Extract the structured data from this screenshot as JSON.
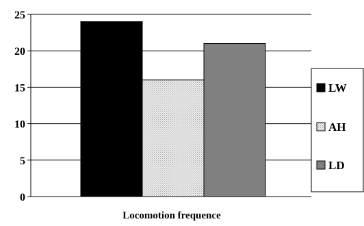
{
  "chart_data": {
    "type": "bar",
    "title": "",
    "xlabel": "Locomotion frequence",
    "ylabel": "",
    "ylim": [
      0,
      25
    ],
    "yticks": [
      "0",
      "5",
      "10",
      "15",
      "20",
      "25"
    ],
    "grid": true,
    "legend_position": "right",
    "categories": [
      ""
    ],
    "series": [
      {
        "name": "LW",
        "values": [
          24
        ],
        "color": "#000000",
        "pattern": "solid"
      },
      {
        "name": "AH",
        "values": [
          16
        ],
        "color": "#e2e2e2",
        "pattern": "dotted"
      },
      {
        "name": "LD",
        "values": [
          21
        ],
        "color": "#808080",
        "pattern": "solid"
      }
    ]
  }
}
